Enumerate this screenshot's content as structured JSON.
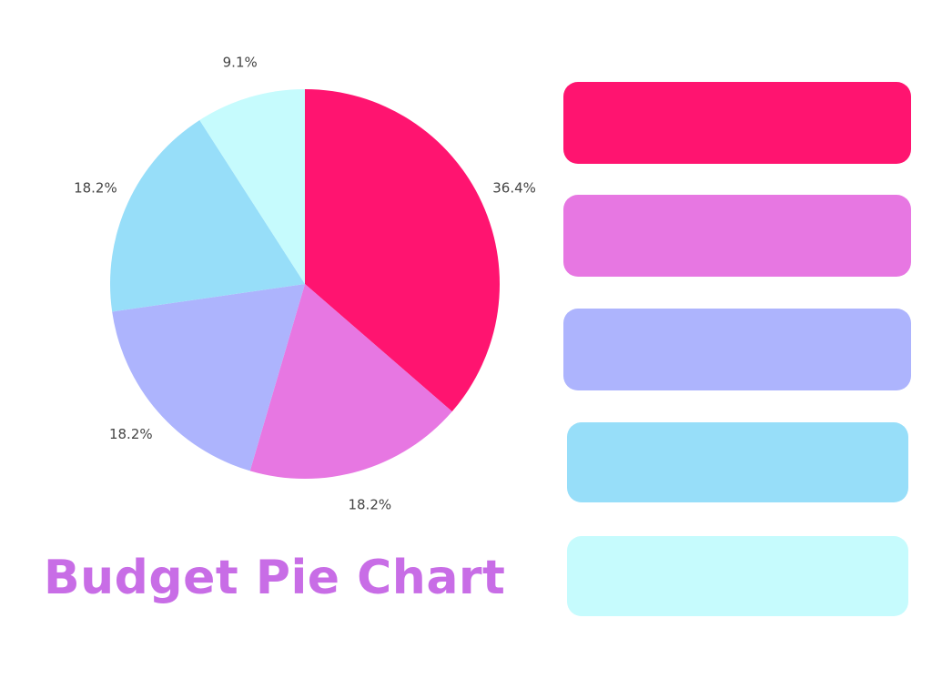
{
  "chart_data": {
    "type": "pie",
    "title": "Budget Pie Chart",
    "slices": [
      {
        "value": 36.4,
        "label": "36.4%",
        "color": "#ff1470"
      },
      {
        "value": 18.2,
        "label": "18.2%",
        "color": "#e777e2"
      },
      {
        "value": 18.2,
        "label": "18.2%",
        "color": "#adb4fd"
      },
      {
        "value": 18.2,
        "label": "18.2%",
        "color": "#97def9"
      },
      {
        "value": 9.1,
        "label": "9.1%",
        "color": "#c6fbfd"
      }
    ],
    "start_angle": "top",
    "direction": "clockwise",
    "legend": {
      "placement": "right",
      "entries": [
        "",
        "",
        "",
        "",
        ""
      ]
    }
  }
}
